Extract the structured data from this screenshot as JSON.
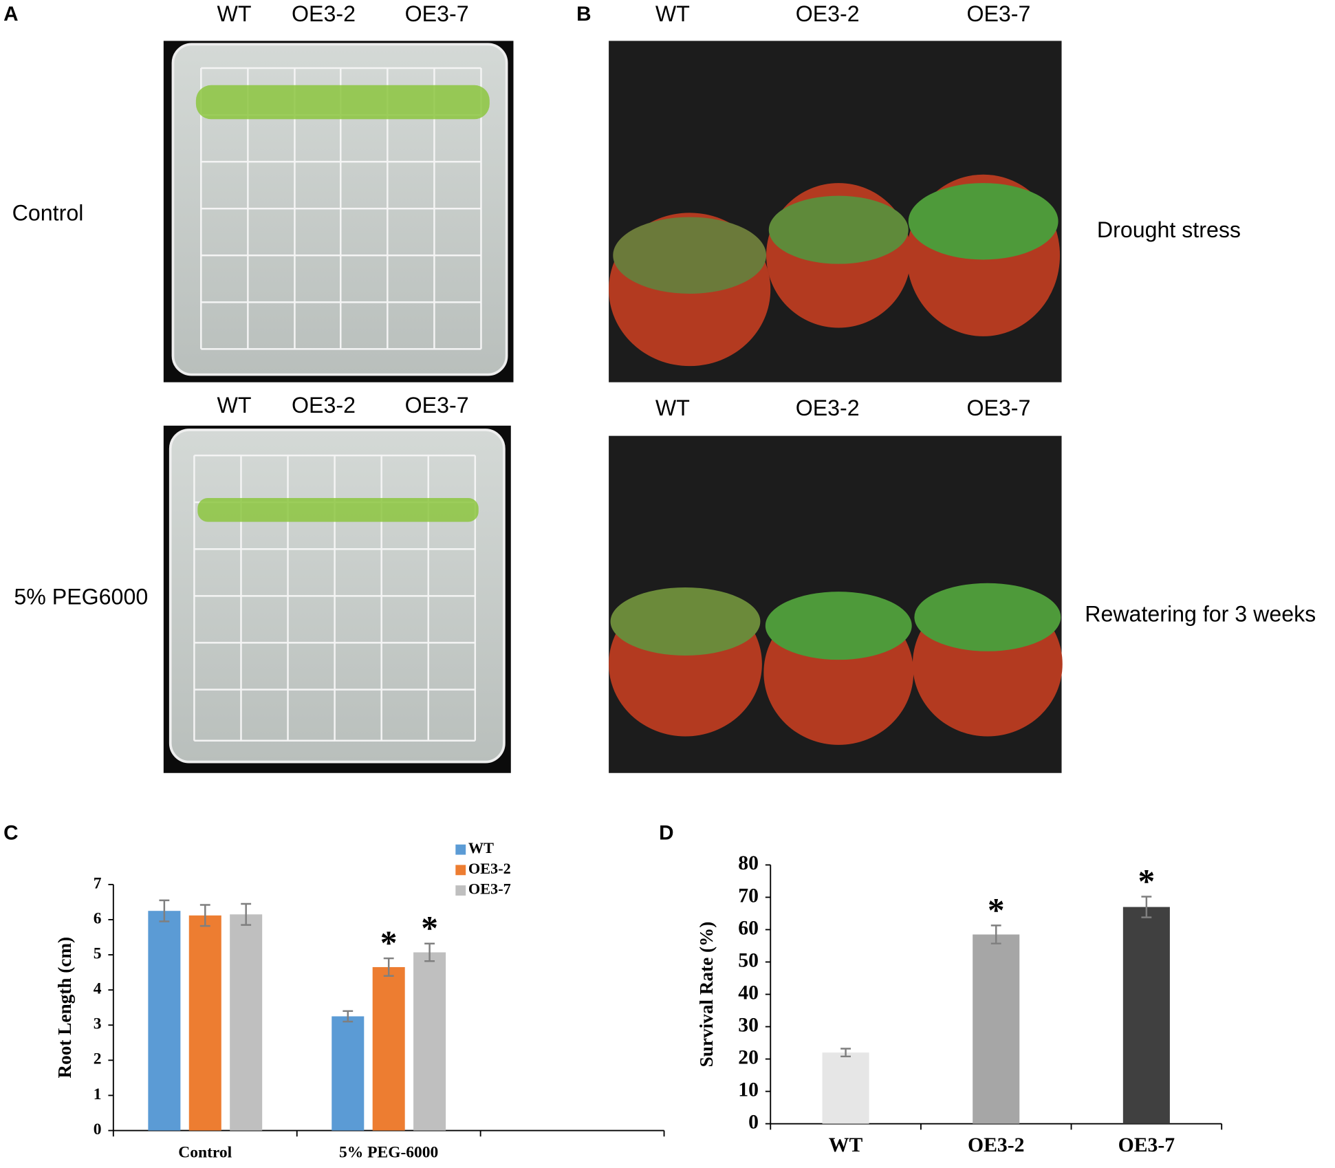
{
  "panels": [
    {
      "letter": "A",
      "rows": [
        {
          "genotypes": [
            "WT",
            "OE3-2",
            "OE3-7"
          ],
          "condition": "Control"
        },
        {
          "genotypes": [
            "WT",
            "OE3-2",
            "OE3-7"
          ],
          "condition": "5% PEG6000"
        }
      ]
    },
    {
      "letter": "B",
      "rows": [
        {
          "genotypes": [
            "WT",
            "OE3-2",
            "OE3-7"
          ],
          "condition": "Drought stress"
        },
        {
          "genotypes": [
            "WT",
            "OE3-2",
            "OE3-7"
          ],
          "condition": "Rewatering for 3 weeks"
        }
      ]
    }
  ],
  "chart_data": [
    {
      "type": "bar",
      "letter": "C",
      "y_label": "Root Length (cm)",
      "categories": [
        "Control",
        "5% PEG-6000",
        null
      ],
      "ylim": [
        0,
        7
      ],
      "yticks": [
        0,
        1,
        2,
        3,
        4,
        5,
        6,
        7
      ],
      "series": [
        {
          "name": "WT",
          "color": "#5b9bd5",
          "values": [
            6.25,
            3.25,
            null
          ],
          "errors": [
            0.3,
            0.15,
            null
          ],
          "markers": [
            null,
            null,
            null
          ]
        },
        {
          "name": "OE3-2",
          "color": "#ed7d31",
          "values": [
            6.12,
            4.65,
            null
          ],
          "errors": [
            0.3,
            0.25,
            null
          ],
          "markers": [
            null,
            "*",
            null
          ]
        },
        {
          "name": "OE3-7",
          "color": "#bfbfbf",
          "values": [
            6.15,
            5.07,
            null
          ],
          "errors": [
            0.3,
            0.25,
            null
          ],
          "markers": [
            null,
            "*",
            null
          ]
        }
      ]
    },
    {
      "type": "bar",
      "letter": "D",
      "y_label": "Survival Rate (%)",
      "categories": [
        "WT",
        "OE3-2",
        "OE3-7"
      ],
      "ylim": [
        0,
        80
      ],
      "yticks": [
        0,
        10,
        20,
        30,
        40,
        50,
        60,
        70,
        80
      ],
      "series": [
        {
          "colors": [
            "#e6e6e6",
            "#a6a6a6",
            "#404040"
          ],
          "values": [
            22,
            58.5,
            67
          ],
          "errors": [
            1.2,
            2.8,
            3.2
          ],
          "markers": [
            null,
            "*",
            "*"
          ]
        }
      ]
    }
  ]
}
